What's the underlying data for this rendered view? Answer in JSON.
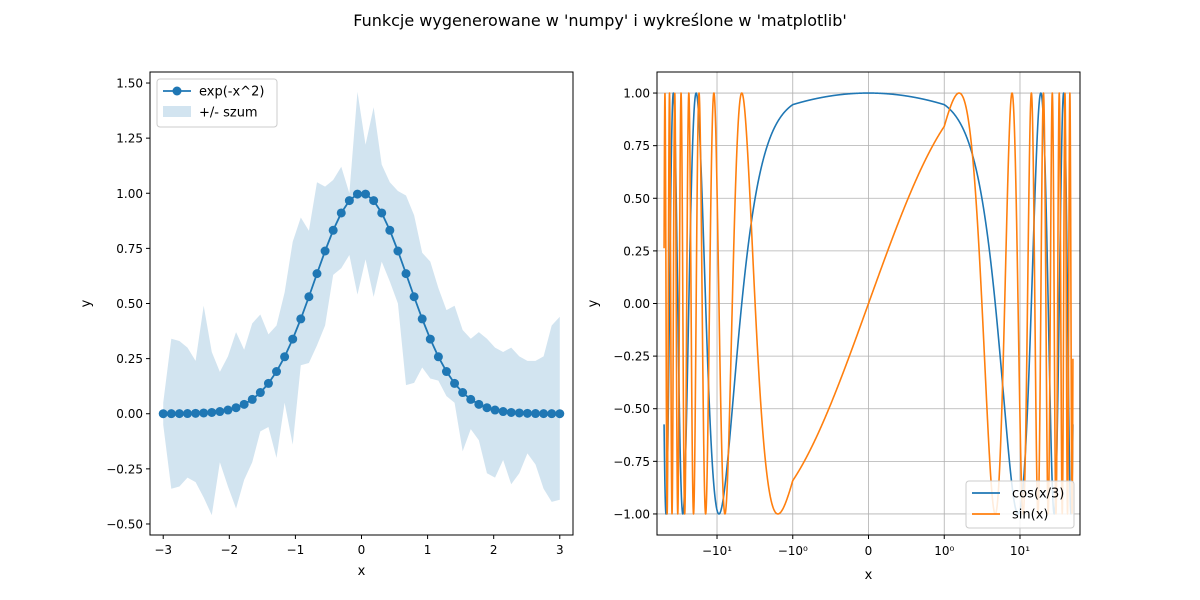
{
  "figure": {
    "suptitle": "Funkcje wygenerowane w 'numpy' i wykreślone w 'matplotlib'"
  },
  "colors": {
    "c0": "#1f77b4",
    "c1": "#ff7f0e",
    "fill": "#1f77b4",
    "grid": "#b0b0b0"
  },
  "chart_data": [
    {
      "type": "line",
      "title": "",
      "xlabel": "x",
      "ylabel": "y",
      "xlim": [
        -3.2,
        3.2
      ],
      "ylim": [
        -0.55,
        1.55
      ],
      "xticks": [
        -3,
        -2,
        -1,
        0,
        1,
        2,
        3
      ],
      "xtick_labels": [
        "−3",
        "−2",
        "−1",
        "0",
        "1",
        "2",
        "3"
      ],
      "yticks": [
        -0.5,
        -0.25,
        0,
        0.25,
        0.5,
        0.75,
        1,
        1.25,
        1.5
      ],
      "ytick_labels": [
        "−0.50",
        "−0.25",
        "0.00",
        "0.25",
        "0.50",
        "0.75",
        "1.00",
        "1.25",
        "1.50"
      ],
      "grid": false,
      "legend_position": "upper-left",
      "series": [
        {
          "name": "exp(-x^2)",
          "marker": "circle",
          "x": [
            -3.0,
            -2.8776,
            -2.7551,
            -2.6327,
            -2.5102,
            -2.3878,
            -2.2653,
            -2.1429,
            -2.0204,
            -1.898,
            -1.7755,
            -1.6531,
            -1.5306,
            -1.4082,
            -1.2857,
            -1.1633,
            -1.0408,
            -0.9184,
            -0.7959,
            -0.6735,
            -0.551,
            -0.4286,
            -0.3061,
            -0.1837,
            -0.0612,
            0.0612,
            0.1837,
            0.3061,
            0.4286,
            0.551,
            0.6735,
            0.7959,
            0.9184,
            1.0408,
            1.1633,
            1.2857,
            1.4082,
            1.5306,
            1.6531,
            1.7755,
            1.898,
            2.0204,
            2.1429,
            2.2653,
            2.3878,
            2.5102,
            2.6327,
            2.7551,
            2.8776,
            3.0
          ],
          "y": [
            0.0001,
            0.0003,
            0.0005,
            0.001,
            0.0018,
            0.0034,
            0.0059,
            0.0101,
            0.0169,
            0.0272,
            0.0427,
            0.0651,
            0.0961,
            0.1376,
            0.1914,
            0.2583,
            0.3386,
            0.4302,
            0.5306,
            0.6355,
            0.7381,
            0.8321,
            0.9106,
            0.9668,
            0.9963,
            0.9963,
            0.9668,
            0.9106,
            0.8321,
            0.7381,
            0.6355,
            0.5306,
            0.4302,
            0.3386,
            0.2583,
            0.1914,
            0.1376,
            0.0961,
            0.0651,
            0.0427,
            0.0272,
            0.0169,
            0.0101,
            0.0059,
            0.0034,
            0.0018,
            0.001,
            0.0005,
            0.0003,
            0.0001
          ]
        },
        {
          "name": "+/- szum",
          "kind": "fill_between",
          "x": [
            -3.0,
            -2.8776,
            -2.7551,
            -2.6327,
            -2.5102,
            -2.3878,
            -2.2653,
            -2.1429,
            -2.0204,
            -1.898,
            -1.7755,
            -1.6531,
            -1.5306,
            -1.4082,
            -1.2857,
            -1.1633,
            -1.0408,
            -0.9184,
            -0.7959,
            -0.6735,
            -0.551,
            -0.4286,
            -0.3061,
            -0.1837,
            -0.0612,
            0.0612,
            0.1837,
            0.3061,
            0.4286,
            0.551,
            0.6735,
            0.7959,
            0.9184,
            1.0408,
            1.1633,
            1.2857,
            1.4082,
            1.5306,
            1.6531,
            1.7755,
            1.898,
            2.0204,
            2.1429,
            2.2653,
            2.3878,
            2.5102,
            2.6327,
            2.7551,
            2.8776,
            3.0
          ],
          "y_low": [
            -0.05,
            -0.34,
            -0.33,
            -0.29,
            -0.31,
            -0.38,
            -0.46,
            -0.22,
            -0.33,
            -0.43,
            -0.3,
            -0.22,
            -0.08,
            -0.06,
            -0.2,
            0.05,
            -0.14,
            0.22,
            0.23,
            0.31,
            0.4,
            0.63,
            0.66,
            0.72,
            0.54,
            0.7,
            0.53,
            0.69,
            0.6,
            0.5,
            0.13,
            0.14,
            0.21,
            0.16,
            0.15,
            0.08,
            0.05,
            -0.17,
            -0.07,
            -0.12,
            -0.27,
            -0.29,
            -0.21,
            -0.32,
            -0.27,
            -0.18,
            -0.23,
            -0.34,
            -0.4,
            -0.39
          ],
          "y_high": [
            0.05,
            0.34,
            0.33,
            0.3,
            0.24,
            0.49,
            0.28,
            0.19,
            0.26,
            0.37,
            0.29,
            0.41,
            0.45,
            0.36,
            0.4,
            0.55,
            0.78,
            0.89,
            0.83,
            1.05,
            1.03,
            1.06,
            1.12,
            1.0,
            1.46,
            1.22,
            1.39,
            1.13,
            1.05,
            1.01,
            0.99,
            0.9,
            0.73,
            0.69,
            0.57,
            0.47,
            0.49,
            0.38,
            0.34,
            0.37,
            0.34,
            0.3,
            0.28,
            0.3,
            0.26,
            0.24,
            0.24,
            0.26,
            0.4,
            0.44
          ]
        }
      ]
    },
    {
      "type": "line",
      "title": "",
      "xlabel": "x",
      "ylabel": "y",
      "xscale": "symlog",
      "linthresh": 1,
      "xlim": [
        -62,
        62
      ],
      "ylim": [
        -1.1,
        1.1
      ],
      "xticks": [
        -10,
        -1,
        0,
        1,
        10
      ],
      "xtick_labels": [
        "−10¹",
        "−10⁰",
        "0",
        "10⁰",
        "10¹"
      ],
      "yticks": [
        -1,
        -0.75,
        -0.5,
        -0.25,
        0,
        0.25,
        0.5,
        0.75,
        1
      ],
      "ytick_labels": [
        "−1.00",
        "−0.75",
        "−0.50",
        "−0.25",
        "0.00",
        "0.25",
        "0.50",
        "0.75",
        "1.00"
      ],
      "grid": true,
      "legend_position": "lower-right",
      "x_function_domain": [
        -50,
        50
      ],
      "series": [
        {
          "name": "cos(x/3)",
          "function": "cos(x/3)"
        },
        {
          "name": "sin(x)",
          "function": "sin(x)"
        }
      ]
    }
  ]
}
